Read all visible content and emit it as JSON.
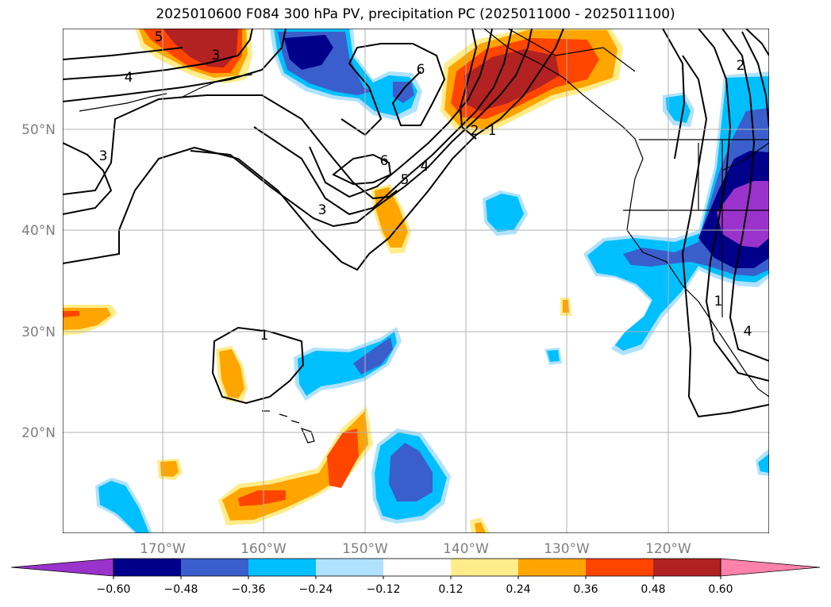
{
  "title": "2025010600 F084 300 hPa PV, precipitation PC (2025011000 - 2025011100)",
  "map": {
    "lat_labels": [
      "50°N",
      "40°N",
      "30°N",
      "20°N"
    ],
    "lon_labels": [
      "170°W",
      "160°W",
      "150°W",
      "140°W",
      "130°W",
      "120°W"
    ],
    "contour_labels": [
      "4",
      "3",
      "5",
      "6",
      "6",
      "3",
      "5",
      "4",
      "2",
      "1",
      "1",
      "3",
      "4",
      "2",
      "1"
    ]
  },
  "colorbar": {
    "ticks": [
      "−0.60",
      "−0.48",
      "−0.36",
      "−0.24",
      "−0.12",
      "0.12",
      "0.24",
      "0.36",
      "0.48",
      "0.60"
    ],
    "colors": [
      "#9933cc",
      "#00008b",
      "#3a5fcd",
      "#00bfff",
      "#b0e2ff",
      "#ffffff",
      "#ffec8b",
      "#ffa500",
      "#ff4500",
      "#b22222",
      "#ff82ab"
    ]
  }
}
